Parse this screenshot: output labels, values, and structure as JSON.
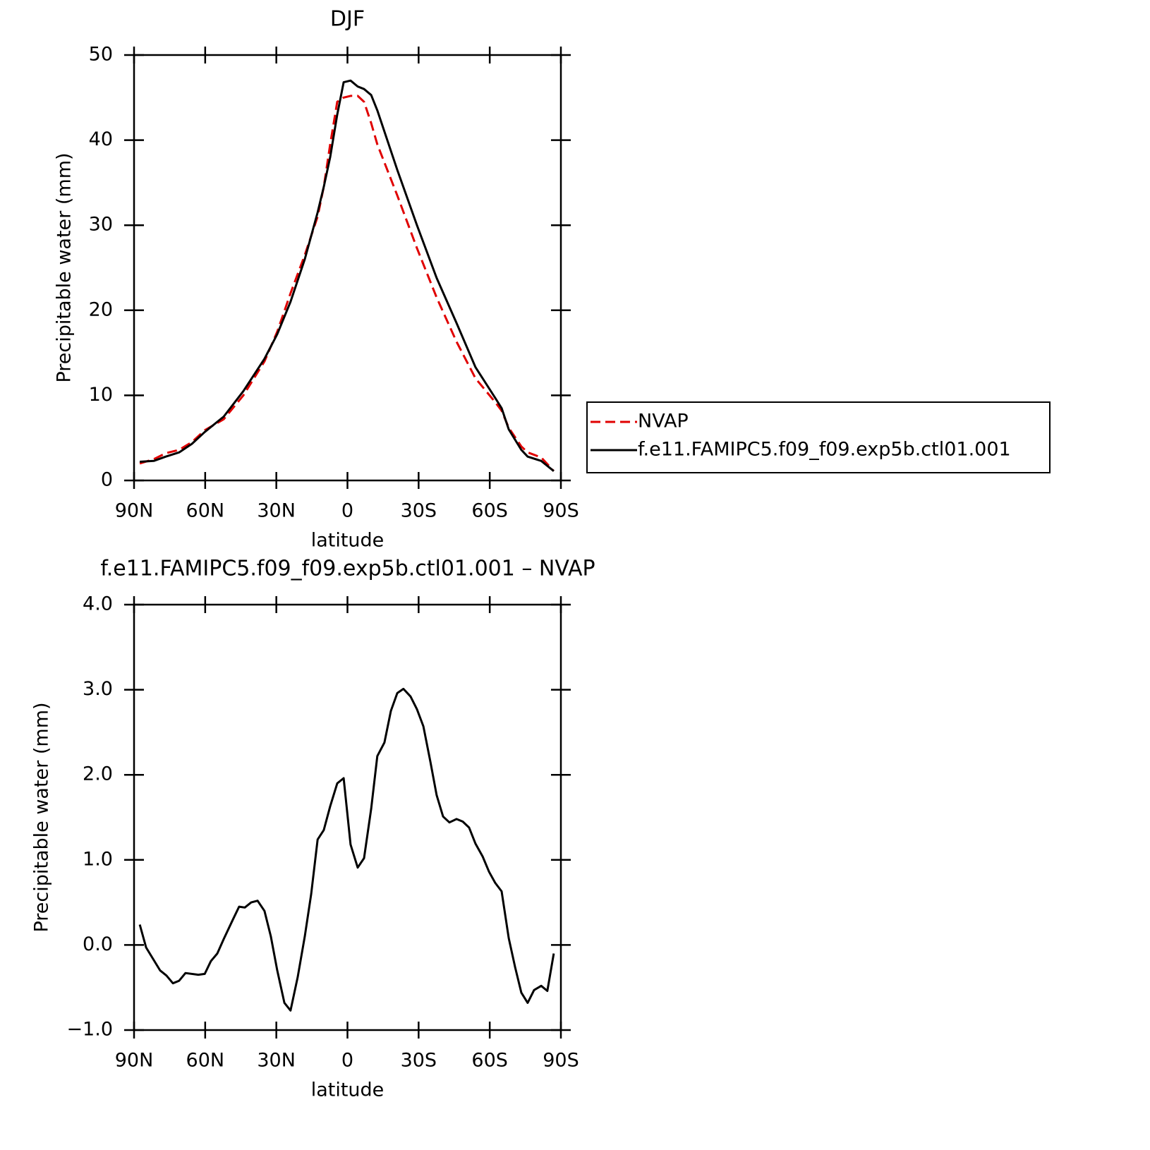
{
  "chart_data": [
    {
      "type": "line",
      "title": "DJF",
      "xlabel": "latitude",
      "ylabel": "Precipitable water (mm)",
      "xlim": [
        90,
        -90
      ],
      "xticks": [
        {
          "value": 90,
          "label": "90N"
        },
        {
          "value": 60,
          "label": "60N"
        },
        {
          "value": 30,
          "label": "30N"
        },
        0,
        {
          "value": -30,
          "label": "30S"
        },
        {
          "value": -60,
          "label": "60S"
        },
        {
          "value": -90,
          "label": "90S"
        }
      ],
      "ylim": [
        0,
        50
      ],
      "yticks": [
        0,
        10,
        20,
        30,
        40,
        50
      ],
      "legend": "right",
      "x": [
        87.6,
        81.7,
        76.6,
        71,
        65.6,
        60.2,
        52.2,
        43.9,
        35,
        29.6,
        24,
        18,
        12.6,
        10,
        7.3,
        4.3,
        1.6,
        -1.3,
        -4.3,
        -7,
        -10,
        -12.6,
        -21,
        -29.3,
        -37.6,
        -46,
        -54,
        -62.3,
        -65,
        -68,
        -73.3,
        -76,
        -81.7,
        -87
      ],
      "series": [
        {
          "name": "NVAP",
          "color": "#e00000",
          "style": "dashed",
          "values": [
            2.0,
            2.5,
            3.2,
            3.6,
            4.5,
            5.9,
            7.2,
            10,
            14,
            17.5,
            22,
            26.5,
            31,
            34.5,
            39.5,
            44.5,
            45,
            45.2,
            45.2,
            44.5,
            42,
            39.5,
            33.5,
            27.3,
            21.5,
            16.3,
            12,
            9.2,
            8.2,
            6.2,
            4,
            3.3,
            2.7,
            1.1
          ]
        },
        {
          "name": "f.e11.FAMIPC5.f09_f09.exp5b.ctl01.001",
          "color": "#000000",
          "style": "solid",
          "values": [
            2.2,
            2.3,
            2.8,
            3.3,
            4.3,
            5.7,
            7.5,
            10.5,
            14.3,
            17.2,
            21,
            26,
            31.5,
            34.5,
            38,
            43,
            46.8,
            47,
            46.3,
            46,
            45.3,
            43.5,
            36.5,
            30,
            23.8,
            18.5,
            13.3,
            9.7,
            8.5,
            6,
            3.6,
            2.8,
            2.3,
            1.1
          ]
        }
      ]
    },
    {
      "type": "line",
      "title": "f.e11.FAMIPC5.f09_f09.exp5b.ctl01.001 – NVAP",
      "xlabel": "latitude",
      "ylabel": "Precipitable water (mm)",
      "xlim": [
        90,
        -90
      ],
      "xticks": [
        {
          "value": 90,
          "label": "90N"
        },
        {
          "value": 60,
          "label": "60N"
        },
        {
          "value": 30,
          "label": "30N"
        },
        0,
        {
          "value": -30,
          "label": "30S"
        },
        {
          "value": -60,
          "label": "60S"
        },
        {
          "value": -90,
          "label": "90S"
        }
      ],
      "ylim": [
        -1,
        4
      ],
      "yticks": [
        {
          "value": -1,
          "label": "−1.0"
        },
        {
          "value": 0,
          "label": "0.0"
        },
        {
          "value": 1,
          "label": "1.0"
        },
        {
          "value": 2,
          "label": "2.0"
        },
        {
          "value": 3,
          "label": "3.0"
        },
        {
          "value": 4,
          "label": "4.0"
        }
      ],
      "x": [
        87.6,
        84.9,
        79,
        76.3,
        73.6,
        71,
        68.3,
        62.9,
        60.2,
        57.6,
        54.9,
        52.2,
        48.3,
        45.7,
        43.3,
        40.6,
        37.9,
        35,
        32.3,
        29.6,
        26.6,
        24,
        21,
        18,
        15.3,
        12.6,
        10,
        7.3,
        4.3,
        1.6,
        -1.3,
        -4.3,
        -7,
        -10,
        -12.6,
        -15.6,
        -18.3,
        -21,
        -23.6,
        -26.6,
        -29.3,
        -32,
        -35,
        -37.6,
        -40.3,
        -43,
        -46,
        -48.6,
        -51.3,
        -54,
        -57,
        -59.7,
        -62.3,
        -65,
        -68,
        -70.7,
        -73.3,
        -76,
        -78.7,
        -81.7,
        -84.3,
        -87
      ],
      "series": [
        {
          "color": "#000000",
          "style": "solid",
          "values": [
            0.24,
            -0.03,
            -0.3,
            -0.36,
            -0.45,
            -0.42,
            -0.33,
            -0.35,
            -0.34,
            -0.19,
            -0.1,
            0.07,
            0.3,
            0.45,
            0.44,
            0.5,
            0.52,
            0.4,
            0.1,
            -0.3,
            -0.68,
            -0.77,
            -0.38,
            0.1,
            0.6,
            1.24,
            1.35,
            1.63,
            1.9,
            1.96,
            1.18,
            0.91,
            1.02,
            1.6,
            2.22,
            2.38,
            2.75,
            2.96,
            3.01,
            2.92,
            2.77,
            2.57,
            2.15,
            1.76,
            1.51,
            1.44,
            1.48,
            1.45,
            1.38,
            1.19,
            1.04,
            0.86,
            0.73,
            0.63,
            0.08,
            -0.26,
            -0.56,
            -0.68,
            -0.53,
            -0.48,
            -0.54,
            -0.1
          ]
        }
      ]
    }
  ]
}
